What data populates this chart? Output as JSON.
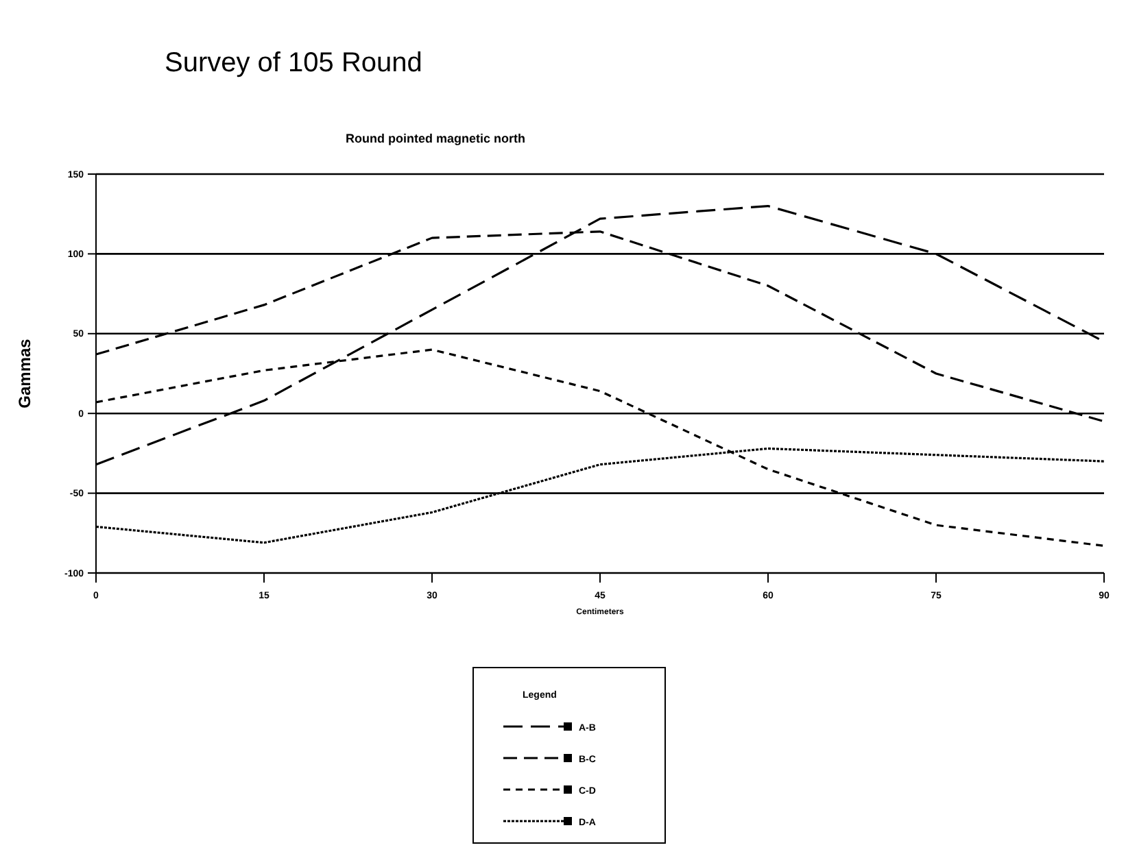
{
  "chart_data": {
    "type": "line",
    "title": "Survey of 105 Round",
    "subtitle": "Round pointed magnetic north",
    "xlabel": "Centimeters",
    "ylabel": "Gammas",
    "legend_title": "Legend",
    "x": [
      0,
      15,
      30,
      45,
      60,
      75,
      90
    ],
    "series": [
      {
        "name": "A-B",
        "color": "#000000",
        "line_style": "dashed",
        "values": [
          -32,
          8,
          65,
          122,
          130,
          100,
          45
        ]
      },
      {
        "name": "B-C",
        "color": "#000000",
        "line_style": "dashed",
        "values": [
          37,
          68,
          110,
          114,
          80,
          25,
          -5
        ]
      },
      {
        "name": "C-D",
        "color": "#000000",
        "line_style": "dashed",
        "values": [
          7,
          27,
          40,
          14,
          -35,
          -70,
          -83
        ]
      },
      {
        "name": "D-A",
        "color": "#000000",
        "line_style": "dotted",
        "values": [
          -71,
          -81,
          -62,
          -32,
          -22,
          -26,
          -30
        ]
      }
    ],
    "xlim": [
      0,
      90
    ],
    "xticks": [
      0,
      15,
      30,
      45,
      60,
      75,
      90
    ],
    "ylim": [
      -100,
      150
    ],
    "yticks": [
      -100,
      -50,
      0,
      50,
      100,
      150
    ],
    "grid": "y",
    "legend": "bottom"
  }
}
